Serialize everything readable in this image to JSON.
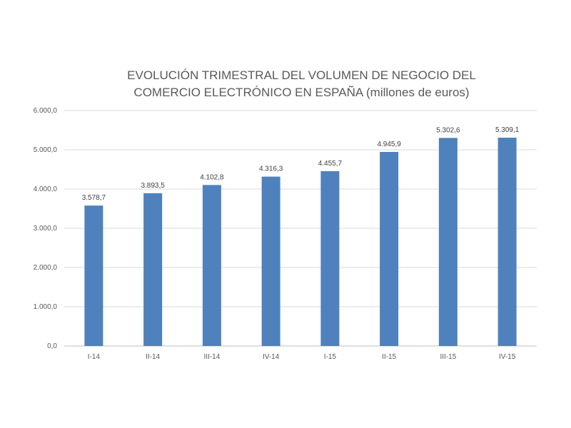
{
  "chart_data": {
    "type": "bar",
    "title_line1": "EVOLUCIÓN TRIMESTRAL DEL  VOLUMEN DE NEGOCIO DEL",
    "title_line2": "COMERCIO ELECTRÓNICO EN ESPAÑA (millones de euros)",
    "categories": [
      "I-14",
      "II-14",
      "III-14",
      "IV-14",
      "I-15",
      "II-15",
      "III-15",
      "IV-15"
    ],
    "values": [
      3578.7,
      3893.5,
      4102.8,
      4316.3,
      4455.7,
      4945.9,
      5302.6,
      5309.1
    ],
    "data_labels": [
      "3.578,7",
      "3.893,5",
      "4.102,8",
      "4.316,3",
      "4.455,7",
      "4.945,9",
      "5.302,6",
      "5.309,1"
    ],
    "y_ticks": [
      0,
      1000,
      2000,
      3000,
      4000,
      5000,
      6000
    ],
    "y_tick_labels": [
      "0,0",
      "1.000,0",
      "2.000,0",
      "3.000,0",
      "4.000,0",
      "5.000,0",
      "6.000,0"
    ],
    "ylim": [
      0,
      6000
    ],
    "grid": true,
    "legend": "none",
    "bar_color": "#4F81BD",
    "grid_color": "#D9D9D9"
  }
}
